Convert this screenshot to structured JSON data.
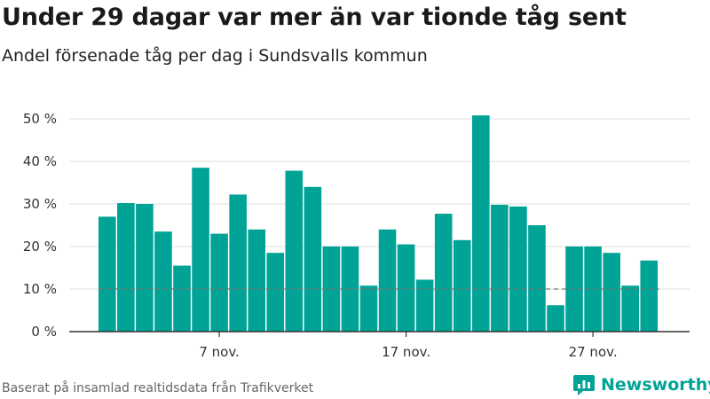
{
  "header": {
    "title": "Under 29 dagar var mer än var tionde tåg sent",
    "subtitle": "Andel försenade tåg per dag i Sundsvalls kommun"
  },
  "footer": {
    "source": "Baserat på insamlad realtidsdata från Trafikverket",
    "brand": "Newsworthy"
  },
  "colors": {
    "bar": "#00a396",
    "grid": "#dddddd",
    "reference_line": "#777777",
    "brand": "#00a396"
  },
  "chart_data": {
    "type": "bar",
    "title": "Under 29 dagar var mer än var tionde tåg sent",
    "subtitle": "Andel försenade tåg per dag i Sundsvalls kommun",
    "x": [
      "2023-11-01",
      "2023-11-02",
      "2023-11-03",
      "2023-11-04",
      "2023-11-05",
      "2023-11-06",
      "2023-11-07",
      "2023-11-08",
      "2023-11-09",
      "2023-11-10",
      "2023-11-11",
      "2023-11-12",
      "2023-11-13",
      "2023-11-14",
      "2023-11-15",
      "2023-11-16",
      "2023-11-17",
      "2023-11-18",
      "2023-11-19",
      "2023-11-20",
      "2023-11-21",
      "2023-11-22",
      "2023-11-23",
      "2023-11-24",
      "2023-11-25",
      "2023-11-26",
      "2023-11-27",
      "2023-11-28",
      "2023-11-29",
      "2023-11-30"
    ],
    "values": [
      27,
      30.2,
      30,
      23.5,
      15.5,
      38.5,
      23,
      32.2,
      24,
      18.5,
      37.8,
      34,
      20,
      20,
      10.8,
      24,
      20.5,
      12.2,
      27.7,
      21.5,
      50.8,
      29.8,
      29.4,
      25,
      6.2,
      20,
      20,
      18.5,
      10.8,
      16.7
    ],
    "xticks": [
      {
        "label": "7 nov.",
        "index": 6
      },
      {
        "label": "17 nov.",
        "index": 16
      },
      {
        "label": "27 nov.",
        "index": 26
      }
    ],
    "yticks": [
      {
        "value": 0,
        "label": "0 %"
      },
      {
        "value": 10,
        "label": "10 %"
      },
      {
        "value": 20,
        "label": "20 %"
      },
      {
        "value": 30,
        "label": "30 %"
      },
      {
        "value": 40,
        "label": "40 %"
      },
      {
        "value": 50,
        "label": "50 %"
      }
    ],
    "ylim": [
      0,
      50
    ],
    "reference_line": 10,
    "grid": true,
    "xlabel": "",
    "ylabel": ""
  }
}
